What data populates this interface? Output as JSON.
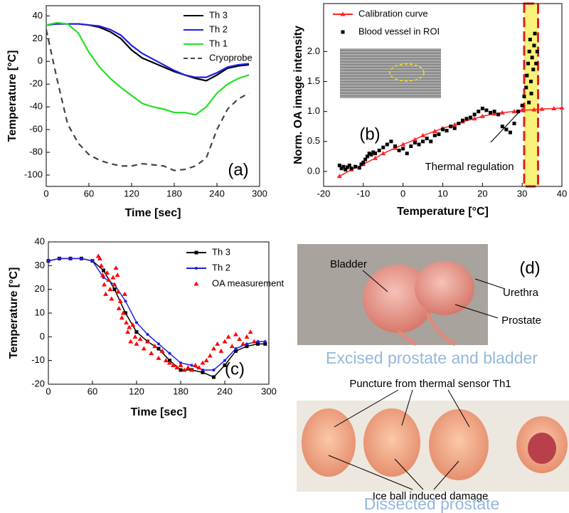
{
  "chart_data": [
    {
      "type": "line",
      "annotation": "(a)",
      "xlabel": "Time [sec]",
      "ylabel": "Temperature [°C]",
      "xlim": [
        0,
        300
      ],
      "ylim": [
        -110,
        49
      ],
      "xticks": [
        0,
        60,
        120,
        180,
        240,
        300
      ],
      "yticks": [
        -100,
        -80,
        -60,
        -40,
        -20,
        0,
        20,
        40
      ],
      "legend": "upper right",
      "x": [
        0,
        15,
        30,
        45,
        60,
        75,
        90,
        105,
        120,
        135,
        150,
        165,
        180,
        195,
        210,
        225,
        240,
        255,
        270,
        285
      ],
      "series": [
        {
          "name": "Th 3",
          "color": "#000000",
          "line": true,
          "values": [
            32,
            33,
            33,
            33,
            32,
            30,
            26,
            20,
            10,
            3,
            -1,
            -5,
            -9,
            -12,
            -15,
            -17,
            -12,
            -6,
            -4,
            -3
          ]
        },
        {
          "name": "Th 2",
          "color": "#1f1fe6",
          "line": true,
          "values": [
            32,
            33,
            33,
            33,
            32,
            31,
            28,
            23,
            14,
            7,
            2,
            -3,
            -8,
            -12,
            -14,
            -14,
            -10,
            -5,
            -3,
            -2
          ]
        },
        {
          "name": "Th 1",
          "color": "#22e022",
          "line": true,
          "values": [
            32,
            34,
            33,
            25,
            8,
            -5,
            -15,
            -23,
            -30,
            -37,
            -40,
            -42,
            -45,
            -45,
            -47,
            -40,
            -28,
            -20,
            -15,
            -12
          ]
        },
        {
          "name": "Cryoprobe",
          "color": "#444444",
          "line": true,
          "dash": true,
          "values": [
            28,
            -15,
            -55,
            -72,
            -82,
            -87,
            -90,
            -92,
            -92,
            -90,
            -91,
            -92,
            -96,
            -95,
            -92,
            -85,
            -60,
            -42,
            -33,
            -28
          ]
        }
      ]
    },
    {
      "type": "scatter",
      "annotation": "(b)",
      "xlabel": "Temperature [°C]",
      "ylabel": "Norm. OA image intensity",
      "xlim": [
        -20,
        40
      ],
      "ylim": [
        -0.25,
        2.8
      ],
      "xticks": [
        -20,
        -10,
        0,
        10,
        20,
        30,
        40
      ],
      "yticks": [
        {
          "value": 0,
          "label": "0.0"
        },
        {
          "value": 0.5,
          "label": "0.5"
        },
        {
          "value": 1,
          "label": "1.0"
        },
        {
          "value": 1.5,
          "label": "1.5"
        },
        {
          "value": 2,
          "label": "2.0"
        }
      ],
      "legend": "upper left",
      "note": "Thermal regulation",
      "band": [
        30.5,
        34
      ],
      "band_color": "#f7f27a",
      "series": [
        {
          "name": "Calibration curve",
          "color": "#ff2020",
          "line": true,
          "marker": "triangle",
          "x": [
            -16,
            -13,
            -10,
            -7,
            -5,
            -2,
            0,
            3,
            5,
            8,
            10,
            13,
            15,
            18,
            20,
            23,
            25,
            28,
            30,
            33,
            35,
            38,
            40
          ],
          "values": [
            -0.08,
            0.03,
            0.12,
            0.22,
            0.3,
            0.39,
            0.45,
            0.53,
            0.6,
            0.67,
            0.72,
            0.78,
            0.83,
            0.88,
            0.92,
            0.96,
            0.98,
            1.0,
            1.02,
            1.03,
            1.04,
            1.05,
            1.06
          ]
        },
        {
          "name": "Blood vessel in ROI",
          "color": "#000000",
          "line": false,
          "marker": "square",
          "x": [
            -16,
            -15.5,
            -15,
            -14.5,
            -14,
            -13.5,
            -13,
            -12,
            -11,
            -10.5,
            -10,
            -9.5,
            -9,
            -8.5,
            -8,
            -7.5,
            -7,
            -6,
            -5,
            -4,
            -3,
            -2,
            -1,
            0,
            1,
            2,
            3,
            4,
            5,
            6,
            7,
            8,
            9,
            10,
            11,
            12,
            13,
            14,
            15,
            16,
            17,
            18,
            19,
            20,
            21,
            22,
            23,
            24,
            25,
            26,
            27,
            28,
            29,
            30,
            30.5,
            31,
            31.2,
            31.5,
            31.8,
            32,
            32.2,
            32.5,
            32.8,
            33,
            33.2,
            33.5,
            33.8,
            32.3,
            31.7
          ],
          "values": [
            0.1,
            0.05,
            0.08,
            0.03,
            0.07,
            0.1,
            0.05,
            0.08,
            0.06,
            0.12,
            0.15,
            0.2,
            0.25,
            0.3,
            0.28,
            0.32,
            0.3,
            0.35,
            0.4,
            0.45,
            0.5,
            0.42,
            0.35,
            0.38,
            0.3,
            0.42,
            0.48,
            0.45,
            0.5,
            0.55,
            0.5,
            0.6,
            0.62,
            0.7,
            0.68,
            0.75,
            0.72,
            0.8,
            0.85,
            0.88,
            0.9,
            0.95,
            1.0,
            1.05,
            1.02,
            0.98,
            1.0,
            0.95,
            0.75,
            0.7,
            0.65,
            0.8,
            1.0,
            1.1,
            1.25,
            1.4,
            1.6,
            1.8,
            2.0,
            2.2,
            1.5,
            1.9,
            1.7,
            2.1,
            2.3,
            1.8,
            2.0,
            1.3,
            1.15
          ]
        }
      ]
    },
    {
      "type": "line",
      "annotation": "(c)",
      "xlabel": "Time [sec]",
      "ylabel": "Temperature [°C]",
      "xlim": [
        0,
        300
      ],
      "ylim": [
        -20,
        40
      ],
      "xticks": [
        0,
        60,
        120,
        180,
        240,
        300
      ],
      "yticks": [
        -20,
        -10,
        0,
        10,
        20,
        30,
        40
      ],
      "legend": "upper right",
      "series": [
        {
          "name": "Th 3",
          "color": "#000000",
          "line": true,
          "marker": "square",
          "x": [
            0,
            15,
            30,
            45,
            60,
            75,
            90,
            105,
            120,
            135,
            150,
            165,
            180,
            195,
            210,
            225,
            240,
            255,
            270,
            285,
            295
          ],
          "values": [
            32,
            33,
            33,
            33,
            32,
            28,
            20,
            10,
            2,
            -2,
            -5,
            -10,
            -14,
            -14,
            -15,
            -17,
            -12,
            -6,
            -4,
            -3,
            -3
          ]
        },
        {
          "name": "Th 2",
          "color": "#1f1fe6",
          "line": true,
          "marker": "circle",
          "x": [
            0,
            15,
            30,
            45,
            60,
            75,
            90,
            105,
            120,
            135,
            150,
            165,
            180,
            195,
            210,
            225,
            240,
            255,
            270,
            285,
            295
          ],
          "values": [
            32,
            33,
            33,
            33,
            32,
            25,
            22,
            15,
            6,
            1,
            -3,
            -7,
            -11,
            -12,
            -14,
            -14,
            -10,
            -5,
            -3,
            -2,
            -2
          ]
        },
        {
          "name": "OA measurement",
          "color": "#ff0000",
          "line": false,
          "marker": "triangle",
          "x": [
            68,
            70,
            72,
            74,
            76,
            78,
            80,
            82,
            84,
            86,
            88,
            90,
            92,
            94,
            95,
            96,
            98,
            100,
            102,
            104,
            106,
            108,
            110,
            112,
            115,
            118,
            120,
            125,
            130,
            135,
            140,
            145,
            150,
            155,
            160,
            165,
            170,
            175,
            180,
            185,
            190,
            195,
            200,
            205,
            210,
            215,
            220,
            225,
            230,
            235,
            240,
            245,
            250,
            255,
            260,
            265,
            270,
            275,
            280
          ],
          "values": [
            34,
            33,
            30,
            26,
            22,
            18,
            27,
            24,
            20,
            16,
            25,
            22,
            29,
            26,
            19,
            12,
            15,
            8,
            10,
            18,
            6,
            2,
            4,
            -2,
            5,
            0,
            -3,
            -1,
            -5,
            -2,
            -7,
            -4,
            -9,
            -6,
            -10,
            -11,
            -12,
            -13,
            -12,
            -14,
            -13,
            -14,
            -12,
            -13,
            -11,
            -10,
            -8,
            -5,
            -3,
            -6,
            -2,
            0,
            -4,
            1,
            -1,
            -3,
            0,
            2,
            -2
          ]
        }
      ]
    }
  ],
  "panel_d": {
    "label": "(d)",
    "bladder": "Bladder",
    "urethra": "Urethra",
    "prostate": "Prostate",
    "caption_top": "Excised prostate and bladder",
    "puncture": "Puncture from thermal sensor Th1",
    "damage": "Ice ball induced damage",
    "caption_bottom": "Dissected prostate"
  }
}
